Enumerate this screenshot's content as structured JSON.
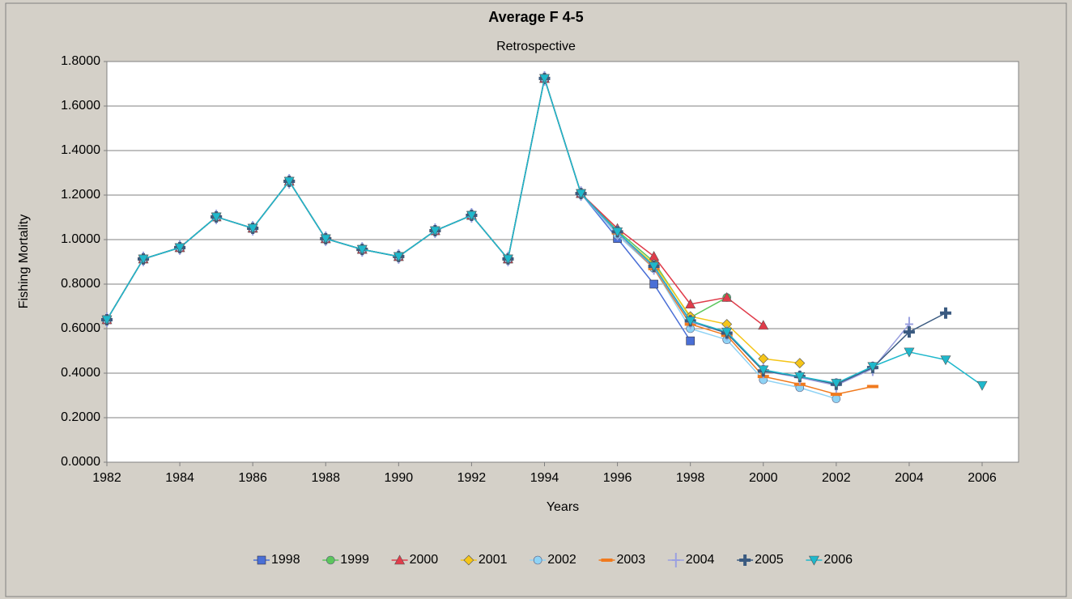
{
  "chart_data": {
    "type": "line",
    "title": "Average F 4-5",
    "subtitle": "Retrospective",
    "x_label": "Years",
    "y_label": "Fishing Mortality",
    "x": [
      1982,
      1983,
      1984,
      1985,
      1986,
      1987,
      1988,
      1989,
      1990,
      1991,
      1992,
      1993,
      1994,
      1995,
      1996,
      1997,
      1998,
      1999,
      2000,
      2001,
      2002,
      2003,
      2004,
      2005,
      2006
    ],
    "xlim": [
      1982,
      2006
    ],
    "xticks": [
      1982,
      1984,
      1986,
      1988,
      1990,
      1992,
      1994,
      1996,
      1998,
      2000,
      2002,
      2004,
      2006
    ],
    "ylim": [
      0,
      1.8
    ],
    "yticks": [
      {
        "value": 0,
        "label": "0.0000"
      },
      {
        "value": 0.2,
        "label": "0.2000"
      },
      {
        "value": 0.4,
        "label": "0.4000"
      },
      {
        "value": 0.6,
        "label": "0.6000"
      },
      {
        "value": 0.8,
        "label": "0.8000"
      },
      {
        "value": 1,
        "label": "1.0000"
      },
      {
        "value": 1.2,
        "label": "1.2000"
      },
      {
        "value": 1.4,
        "label": "1.4000"
      },
      {
        "value": 1.6,
        "label": "1.6000"
      },
      {
        "value": 1.8,
        "label": "1.8000"
      }
    ],
    "grid": true,
    "legend": "bottom",
    "series": [
      {
        "name": "1998",
        "color": "#4a6fd6",
        "marker": "square",
        "values": [
          0.64,
          0.913,
          0.964,
          1.102,
          1.051,
          1.262,
          1.004,
          0.956,
          0.924,
          1.04,
          1.109,
          0.913,
          1.724,
          1.207,
          1.005,
          0.8,
          0.545,
          null,
          null,
          null,
          null,
          null,
          null,
          null,
          null
        ]
      },
      {
        "name": "1999",
        "color": "#5cc65c",
        "marker": "circle",
        "values": [
          0.64,
          0.913,
          0.964,
          1.102,
          1.051,
          1.262,
          1.004,
          0.956,
          0.924,
          1.04,
          1.109,
          0.913,
          1.724,
          1.207,
          1.04,
          0.9,
          0.65,
          0.74,
          null,
          null,
          null,
          null,
          null,
          null,
          null
        ]
      },
      {
        "name": "2000",
        "color": "#e03c4a",
        "marker": "triangle",
        "values": [
          0.64,
          0.913,
          0.964,
          1.102,
          1.051,
          1.262,
          1.004,
          0.956,
          0.924,
          1.04,
          1.109,
          0.913,
          1.724,
          1.207,
          1.05,
          0.925,
          0.71,
          0.74,
          0.615,
          null,
          null,
          null,
          null,
          null,
          null
        ]
      },
      {
        "name": "2001",
        "color": "#f5c518",
        "marker": "diamond",
        "values": [
          0.64,
          0.913,
          0.964,
          1.102,
          1.051,
          1.262,
          1.004,
          0.956,
          0.924,
          1.04,
          1.109,
          0.913,
          1.724,
          1.207,
          1.03,
          0.89,
          0.655,
          0.62,
          0.465,
          0.445,
          null,
          null,
          null,
          null,
          null
        ]
      },
      {
        "name": "2002",
        "color": "#8fd3f5",
        "marker": "circle",
        "values": [
          0.64,
          0.913,
          0.964,
          1.102,
          1.051,
          1.262,
          1.004,
          0.956,
          0.924,
          1.04,
          1.109,
          0.913,
          1.724,
          1.207,
          1.02,
          0.87,
          0.6,
          0.55,
          0.37,
          0.335,
          0.285,
          null,
          null,
          null,
          null
        ]
      },
      {
        "name": "2003",
        "color": "#f07a1e",
        "marker": "dash",
        "values": [
          0.64,
          0.913,
          0.964,
          1.102,
          1.051,
          1.262,
          1.004,
          0.956,
          0.924,
          1.04,
          1.109,
          0.913,
          1.724,
          1.207,
          1.03,
          0.87,
          0.62,
          0.57,
          0.385,
          0.35,
          0.305,
          0.34,
          null,
          null,
          null
        ]
      },
      {
        "name": "2004",
        "color": "#9aa0e0",
        "marker": "plus",
        "values": [
          0.64,
          0.913,
          0.964,
          1.102,
          1.051,
          1.262,
          1.004,
          0.956,
          0.924,
          1.04,
          1.109,
          0.913,
          1.724,
          1.207,
          1.03,
          0.875,
          0.63,
          0.58,
          0.41,
          0.38,
          0.345,
          0.42,
          0.62,
          null,
          null
        ]
      },
      {
        "name": "2005",
        "color": "#3a5a80",
        "marker": "cross",
        "values": [
          0.64,
          0.913,
          0.964,
          1.102,
          1.051,
          1.262,
          1.004,
          0.956,
          0.924,
          1.04,
          1.109,
          0.913,
          1.724,
          1.207,
          1.035,
          0.88,
          0.635,
          0.58,
          0.41,
          0.385,
          0.35,
          0.425,
          0.585,
          0.67,
          null
        ]
      },
      {
        "name": "2006",
        "color": "#1fb8cc",
        "marker": "triangle-down",
        "values": [
          0.64,
          0.913,
          0.964,
          1.102,
          1.051,
          1.262,
          1.004,
          0.956,
          0.924,
          1.04,
          1.109,
          0.913,
          1.724,
          1.207,
          1.035,
          0.88,
          0.635,
          0.585,
          0.415,
          0.385,
          0.355,
          0.43,
          0.495,
          0.46,
          0.345
        ]
      }
    ]
  }
}
